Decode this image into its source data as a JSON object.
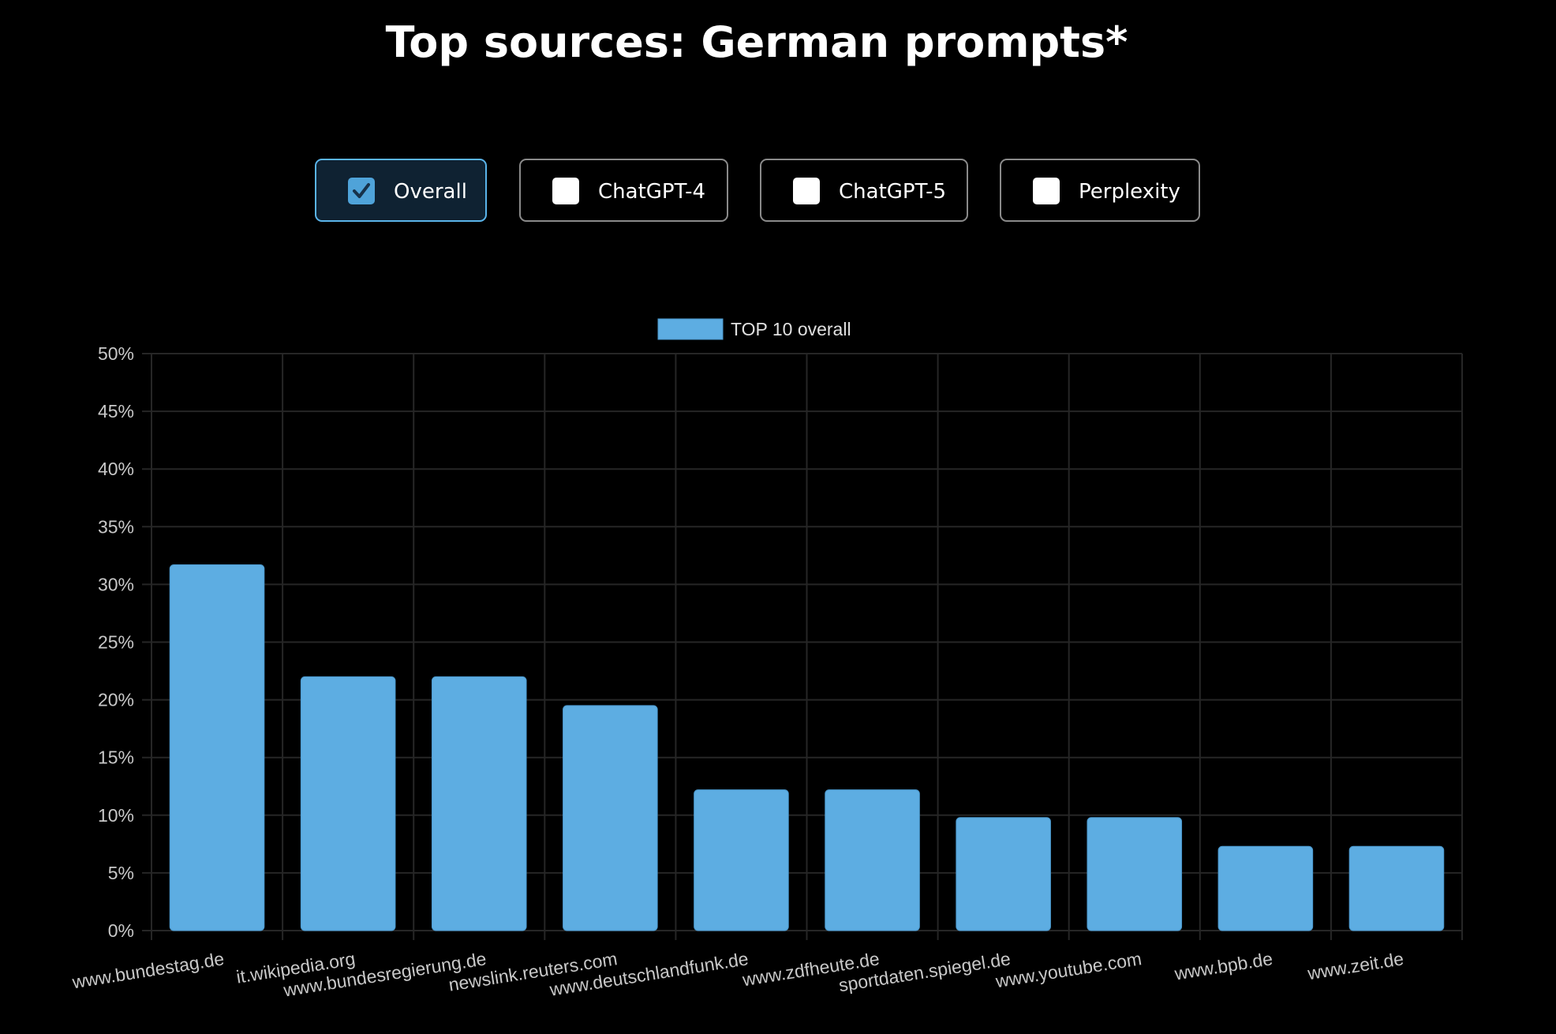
{
  "title": "Top sources: German prompts*",
  "filters": [
    {
      "label": "Overall",
      "checked": true
    },
    {
      "label": "ChatGPT-4",
      "checked": false
    },
    {
      "label": "ChatGPT-5",
      "checked": false
    },
    {
      "label": "Perplexity",
      "checked": false
    }
  ],
  "colors": {
    "background": "#000000",
    "bar": "#5dade2",
    "bar_border": "#4a97cc",
    "grid": "#262626",
    "active_border": "#5ab4ea",
    "active_fill": "#0f2232"
  },
  "chart_data": {
    "type": "bar",
    "legend": {
      "label": "TOP 10 overall",
      "position": "top"
    },
    "categories": [
      "www.bundestag.de",
      "it.wikipedia.org",
      "www.bundesregierung.de",
      "newslink.reuters.com",
      "www.deutschlandfunk.de",
      "www.zdfheute.de",
      "sportdaten.spiegel.de",
      "www.youtube.com",
      "www.bpb.de",
      "www.zeit.de"
    ],
    "series": [
      {
        "name": "TOP 10 overall",
        "values": [
          31.7,
          22.0,
          22.0,
          19.5,
          12.2,
          12.2,
          9.8,
          9.8,
          7.3,
          7.3
        ]
      }
    ],
    "ylim": [
      0,
      50
    ],
    "yticks": [
      "0%",
      "5%",
      "10%",
      "15%",
      "20%",
      "25%",
      "30%",
      "35%",
      "40%",
      "45%",
      "50%"
    ],
    "grid": true
  }
}
